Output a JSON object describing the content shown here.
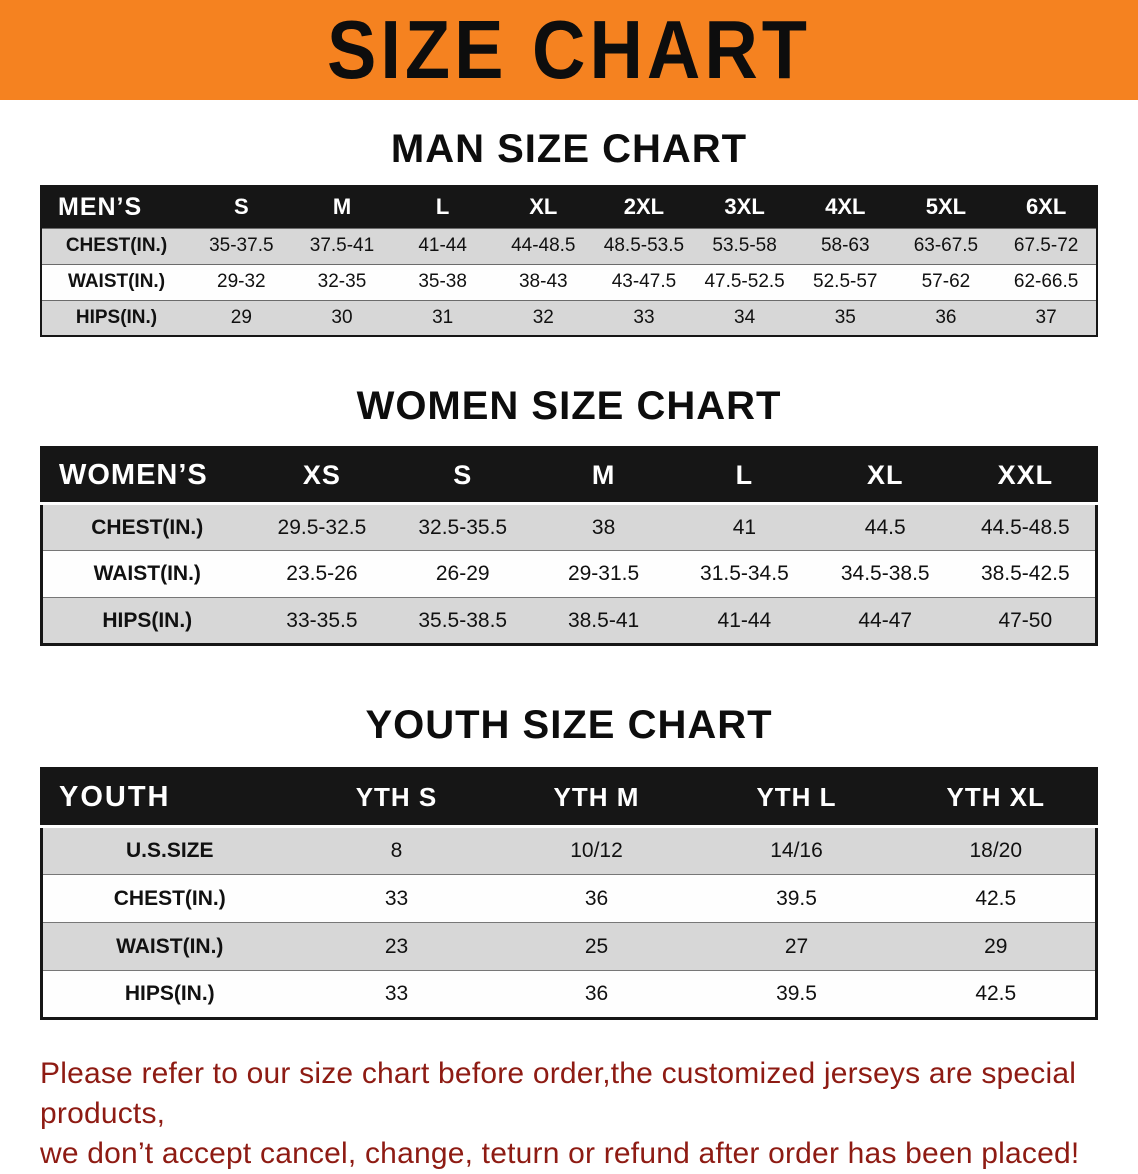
{
  "banner": {
    "title": "SIZE CHART"
  },
  "sections": [
    {
      "title": "MAN SIZE CHART",
      "header_label": "MEN’S",
      "columns": [
        "S",
        "M",
        "L",
        "XL",
        "2XL",
        "3XL",
        "4XL",
        "5XL",
        "6XL"
      ],
      "rows": [
        {
          "label": "CHEST(IN.)",
          "values": [
            "35-37.5",
            "37.5-41",
            "41-44",
            "44-48.5",
            "48.5-53.5",
            "53.5-58",
            "58-63",
            "63-67.5",
            "67.5-72"
          ]
        },
        {
          "label": "WAIST(IN.)",
          "values": [
            "29-32",
            "32-35",
            "35-38",
            "38-43",
            "43-47.5",
            "47.5-52.5",
            "52.5-57",
            "57-62",
            "62-66.5"
          ]
        },
        {
          "label": "HIPS(IN.)",
          "values": [
            "29",
            "30",
            "31",
            "32",
            "33",
            "34",
            "35",
            "36",
            "37"
          ]
        }
      ]
    },
    {
      "title": "WOMEN SIZE CHART",
      "header_label": "WOMEN’S",
      "columns": [
        "XS",
        "S",
        "M",
        "L",
        "XL",
        "XXL"
      ],
      "rows": [
        {
          "label": "CHEST(IN.)",
          "values": [
            "29.5-32.5",
            "32.5-35.5",
            "38",
            "41",
            "44.5",
            "44.5-48.5"
          ]
        },
        {
          "label": "WAIST(IN.)",
          "values": [
            "23.5-26",
            "26-29",
            "29-31.5",
            "31.5-34.5",
            "34.5-38.5",
            "38.5-42.5"
          ]
        },
        {
          "label": "HIPS(IN.)",
          "values": [
            "33-35.5",
            "35.5-38.5",
            "38.5-41",
            "41-44",
            "44-47",
            "47-50"
          ]
        }
      ]
    },
    {
      "title": "YOUTH SIZE CHART",
      "header_label": "YOUTH",
      "columns": [
        "YTH S",
        "YTH M",
        "YTH L",
        "YTH XL"
      ],
      "rows": [
        {
          "label": "U.S.SIZE",
          "values": [
            "8",
            "10/12",
            "14/16",
            "18/20"
          ]
        },
        {
          "label": "CHEST(IN.)",
          "values": [
            "33",
            "36",
            "39.5",
            "42.5"
          ]
        },
        {
          "label": "WAIST(IN.)",
          "values": [
            "23",
            "25",
            "27",
            "29"
          ]
        },
        {
          "label": "HIPS(IN.)",
          "values": [
            "33",
            "36",
            "39.5",
            "42.5"
          ]
        }
      ]
    }
  ],
  "footer": {
    "line1": "Please refer to our size chart before order,the customized jerseys are special products,",
    "line2": "we don’t accept cancel, change, teturn or refund after order has been placed!"
  },
  "theme": {
    "banner_bg": "#f58220",
    "header_row_bg": "#161616",
    "stripe_bg": "#d7d7d7",
    "row_white": "#fefefe",
    "footer_color": "#8e1b13"
  }
}
